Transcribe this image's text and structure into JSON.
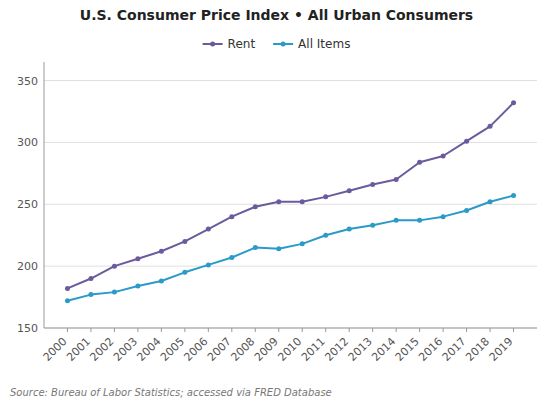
{
  "chart_data": {
    "type": "line",
    "title": "U.S. Consumer Price Index • All Urban Consumers",
    "source": "Source: Bureau of Labor Statistics; accessed via FRED Database",
    "x": [
      2000,
      2001,
      2002,
      2003,
      2004,
      2005,
      2006,
      2007,
      2008,
      2009,
      2010,
      2011,
      2012,
      2013,
      2014,
      2015,
      2016,
      2017,
      2018,
      2019
    ],
    "series": [
      {
        "name": "Rent",
        "color": "#6B5B9E",
        "marker": "circle",
        "values": [
          182,
          190,
          200,
          206,
          212,
          220,
          230,
          240,
          248,
          252,
          252,
          256,
          261,
          266,
          270,
          284,
          289,
          301,
          313,
          332
        ]
      },
      {
        "name": "All Items",
        "color": "#2B9AC8",
        "marker": "circle",
        "values": [
          172,
          177,
          179,
          184,
          188,
          195,
          201,
          207,
          215,
          214,
          218,
          225,
          230,
          233,
          237,
          237,
          240,
          245,
          252,
          257
        ]
      }
    ],
    "xlim": [
      1999,
      2020
    ],
    "xticks": [
      2000,
      2001,
      2002,
      2003,
      2004,
      2005,
      2006,
      2007,
      2008,
      2009,
      2010,
      2011,
      2012,
      2013,
      2014,
      2015,
      2016,
      2017,
      2018,
      2019
    ],
    "ylim": [
      150,
      365
    ],
    "yticks": [
      150,
      200,
      250,
      300,
      350
    ],
    "grid": true,
    "legend": "top"
  }
}
